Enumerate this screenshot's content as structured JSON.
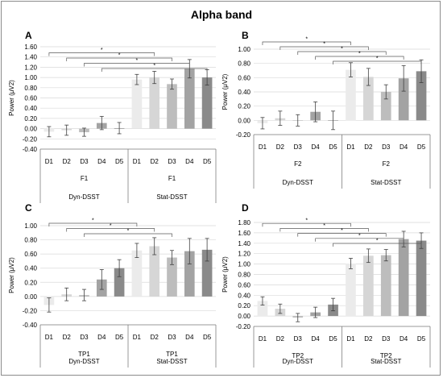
{
  "title": "Alpha band",
  "colors": {
    "D1": "#ebebeb",
    "D2": "#d6d6d6",
    "D3": "#bdbdbd",
    "D4": "#a3a3a3",
    "D5": "#8a8a8a",
    "axis": "#7f7f7f",
    "grid": "#d9d9d9",
    "error": "#404040",
    "bracket": "#595959"
  },
  "chart_data": [
    {
      "type": "bar",
      "panel": "A",
      "ylabel": "Power (μV2)",
      "yticks": [
        "1.60",
        "1.40",
        "1.20",
        "1.00",
        "0.80",
        "0.60",
        "0.40",
        "0.20",
        "0.00",
        "-0.20",
        "-0.40"
      ],
      "ylim": [
        -0.4,
        1.6
      ],
      "categories": [
        "D1",
        "D2",
        "D3",
        "D4",
        "D5",
        "D1",
        "D2",
        "D3",
        "D4",
        "D5"
      ],
      "values": [
        -0.06,
        -0.03,
        -0.07,
        0.11,
        0.01,
        0.96,
        1.0,
        0.87,
        1.17,
        1.0
      ],
      "errors": [
        0.1,
        0.1,
        0.08,
        0.13,
        0.11,
        0.1,
        0.12,
        0.1,
        0.18,
        0.15
      ],
      "groups": [
        {
          "sub": "F1",
          "name": "Dyn-DSST"
        },
        {
          "sub": "F1",
          "name": "Stat-DSST"
        }
      ],
      "brackets": [
        {
          "from": 0,
          "to": 6,
          "label": "*"
        },
        {
          "from": 1,
          "to": 7,
          "label": "*"
        },
        {
          "from": 2,
          "to": 8,
          "label": "*"
        },
        {
          "from": 3,
          "to": 9,
          "label": "*"
        }
      ]
    },
    {
      "type": "bar",
      "panel": "B",
      "ylabel": "Power (μV2)",
      "yticks": [
        "1.00",
        "0.80",
        "0.60",
        "0.40",
        "0.20",
        "0.00",
        "-0.20"
      ],
      "ylim": [
        -0.2,
        1.0
      ],
      "categories": [
        "D1",
        "D2",
        "D3",
        "D4",
        "D5",
        "D1",
        "D2",
        "D3",
        "D4",
        "D5"
      ],
      "values": [
        -0.04,
        0.03,
        0.0,
        0.12,
        0.0,
        0.71,
        0.61,
        0.4,
        0.59,
        0.69
      ],
      "errors": [
        0.08,
        0.1,
        0.08,
        0.14,
        0.13,
        0.1,
        0.12,
        0.1,
        0.18,
        0.16
      ],
      "groups": [
        {
          "sub": "F2",
          "name": "Dyn-DSST"
        },
        {
          "sub": "F2",
          "name": "Stat-DSST"
        }
      ],
      "brackets": [
        {
          "from": 0,
          "to": 5,
          "label": "*"
        },
        {
          "from": 1,
          "to": 6,
          "label": "*"
        },
        {
          "from": 2,
          "to": 7,
          "label": "*"
        },
        {
          "from": 3,
          "to": 8,
          "label": "*"
        },
        {
          "from": 4,
          "to": 9,
          "label": "*"
        }
      ]
    },
    {
      "type": "bar",
      "panel": "C",
      "ylabel": "Power (μV2)",
      "yticks": [
        "1.00",
        "0.80",
        "0.60",
        "0.40",
        "0.20",
        "0.00",
        "-0.20",
        "-0.40"
      ],
      "ylim": [
        -0.4,
        1.0
      ],
      "categories": [
        "D1",
        "D2",
        "D3",
        "D4",
        "D5",
        "D1",
        "D2",
        "D3",
        "D4",
        "D5"
      ],
      "values": [
        -0.12,
        0.03,
        0.02,
        0.24,
        0.4,
        0.65,
        0.71,
        0.55,
        0.64,
        0.66
      ],
      "errors": [
        0.1,
        0.09,
        0.08,
        0.14,
        0.12,
        0.1,
        0.12,
        0.1,
        0.18,
        0.16
      ],
      "groups": [
        {
          "sub": "TP1",
          "name": "Dyn-DSST"
        },
        {
          "sub": "TP1",
          "name": "Stat-DSST"
        }
      ],
      "brackets": [
        {
          "from": 0,
          "to": 5,
          "label": "*"
        },
        {
          "from": 1,
          "to": 6,
          "label": "*"
        },
        {
          "from": 2,
          "to": 7,
          "label": "*"
        }
      ]
    },
    {
      "type": "bar",
      "panel": "D",
      "ylabel": "Power (μV2)",
      "yticks": [
        "1.80",
        "1.60",
        "1.40",
        "1.20",
        "1.00",
        "0.80",
        "0.60",
        "0.40",
        "0.20",
        "0.00",
        "-0.20"
      ],
      "ylim": [
        -0.2,
        1.8
      ],
      "categories": [
        "D1",
        "D2",
        "D3",
        "D4",
        "D5",
        "D1",
        "D2",
        "D3",
        "D4",
        "D5"
      ],
      "values": [
        0.29,
        0.14,
        -0.03,
        0.07,
        0.22,
        1.01,
        1.16,
        1.17,
        1.48,
        1.45
      ],
      "errors": [
        0.08,
        0.09,
        0.08,
        0.1,
        0.12,
        0.1,
        0.13,
        0.11,
        0.15,
        0.15
      ],
      "groups": [
        {
          "sub": "TP2",
          "name": "Dyn-DSST"
        },
        {
          "sub": "TP2",
          "name": "Stat-DSST"
        }
      ],
      "brackets": [
        {
          "from": 0,
          "to": 5,
          "label": "*"
        },
        {
          "from": 1,
          "to": 6,
          "label": "*"
        },
        {
          "from": 2,
          "to": 7,
          "label": "*"
        },
        {
          "from": 3,
          "to": 8,
          "label": "*"
        },
        {
          "from": 4,
          "to": 9,
          "label": "*"
        }
      ]
    }
  ]
}
